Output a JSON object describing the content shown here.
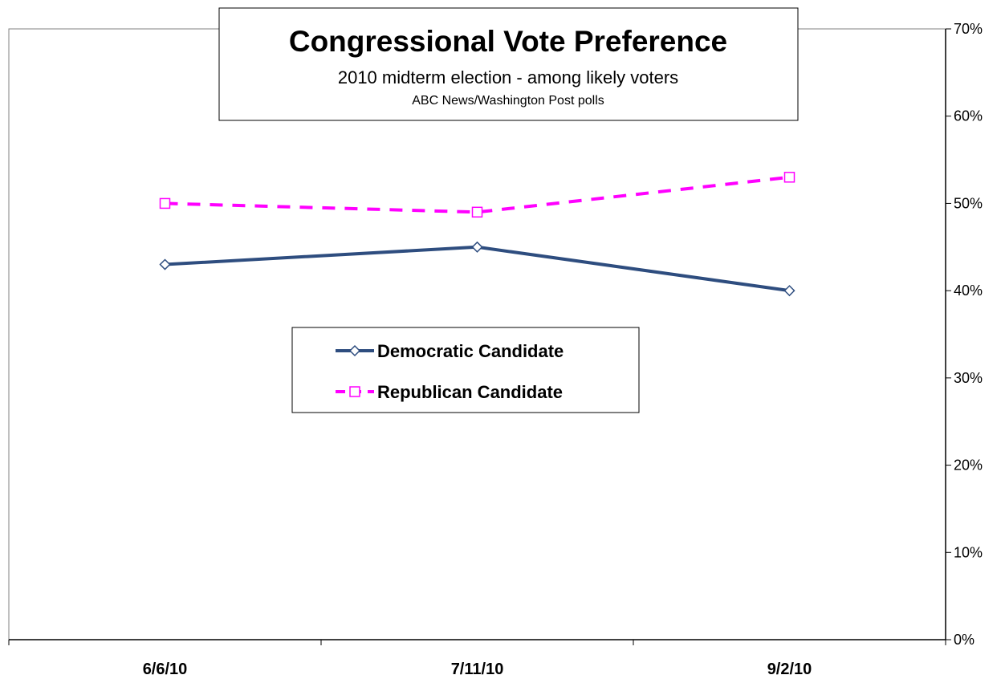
{
  "chart_data": {
    "type": "line",
    "title": "Congressional Vote Preference",
    "subtitle": "2010 midterm election - among likely voters",
    "source": "ABC News/Washington Post polls",
    "categories": [
      "6/6/10",
      "7/11/10",
      "9/2/10"
    ],
    "ylim": [
      0,
      70
    ],
    "ytick_step": 10,
    "y_tick_labels": [
      "0%",
      "10%",
      "20%",
      "30%",
      "40%",
      "50%",
      "60%",
      "70%"
    ],
    "y_axis_side": "right",
    "grid": false,
    "legend_position": "center",
    "series": [
      {
        "name": "Democratic Candidate",
        "values": [
          43,
          45,
          40
        ],
        "color": "#2E4D7F",
        "line_style": "solid",
        "marker": "diamond"
      },
      {
        "name": "Republican Candidate",
        "values": [
          50,
          49,
          53
        ],
        "color": "#FF00FF",
        "line_style": "dashed",
        "marker": "square"
      }
    ]
  }
}
